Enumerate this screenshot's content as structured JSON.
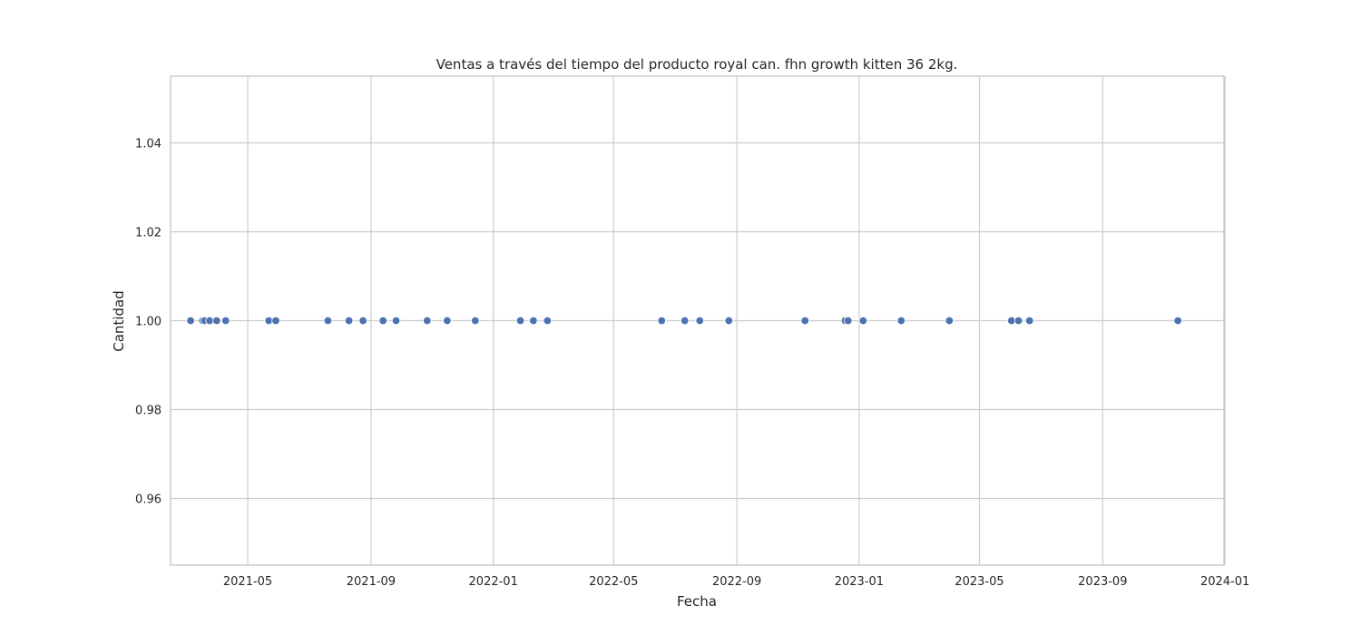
{
  "chart_data": {
    "type": "scatter",
    "title": "Ventas a través del tiempo del producto royal can. fhn growth kitten 36 2kg.",
    "xlabel": "Fecha",
    "ylabel": "Cantidad",
    "xlim": [
      "2021-02-13",
      "2023-12-31"
    ],
    "ylim": [
      0.945,
      1.055
    ],
    "grid": true,
    "point_color": "#4c72b0",
    "grid_color": "#cccccc",
    "x_ticks": [
      {
        "value": "2021-05-01",
        "label": "2021-05"
      },
      {
        "value": "2021-09-01",
        "label": "2021-09"
      },
      {
        "value": "2022-01-01",
        "label": "2022-01"
      },
      {
        "value": "2022-05-01",
        "label": "2022-05"
      },
      {
        "value": "2022-09-01",
        "label": "2022-09"
      },
      {
        "value": "2023-01-01",
        "label": "2023-01"
      },
      {
        "value": "2023-05-01",
        "label": "2023-05"
      },
      {
        "value": "2023-09-01",
        "label": "2023-09"
      },
      {
        "value": "2024-01-01",
        "label": "2024-01"
      }
    ],
    "y_ticks": [
      {
        "value": 0.96,
        "label": "0.96"
      },
      {
        "value": 0.98,
        "label": "0.98"
      },
      {
        "value": 1.0,
        "label": "1.00"
      },
      {
        "value": 1.02,
        "label": "1.02"
      },
      {
        "value": 1.04,
        "label": "1.04"
      }
    ],
    "points": [
      {
        "x": "2021-03-05",
        "y": 1
      },
      {
        "x": "2021-03-17",
        "y": 1
      },
      {
        "x": "2021-03-19",
        "y": 1
      },
      {
        "x": "2021-03-24",
        "y": 1
      },
      {
        "x": "2021-03-31",
        "y": 1
      },
      {
        "x": "2021-04-09",
        "y": 1
      },
      {
        "x": "2021-05-22",
        "y": 1
      },
      {
        "x": "2021-05-29",
        "y": 1
      },
      {
        "x": "2021-07-20",
        "y": 1
      },
      {
        "x": "2021-08-10",
        "y": 1
      },
      {
        "x": "2021-08-24",
        "y": 1
      },
      {
        "x": "2021-09-13",
        "y": 1
      },
      {
        "x": "2021-09-26",
        "y": 1
      },
      {
        "x": "2021-10-27",
        "y": 1
      },
      {
        "x": "2021-11-16",
        "y": 1
      },
      {
        "x": "2021-12-14",
        "y": 1
      },
      {
        "x": "2022-01-28",
        "y": 1
      },
      {
        "x": "2022-02-10",
        "y": 1
      },
      {
        "x": "2022-02-24",
        "y": 1
      },
      {
        "x": "2022-06-18",
        "y": 1
      },
      {
        "x": "2022-07-11",
        "y": 1
      },
      {
        "x": "2022-07-26",
        "y": 1
      },
      {
        "x": "2022-08-24",
        "y": 1
      },
      {
        "x": "2022-11-08",
        "y": 1
      },
      {
        "x": "2022-12-18",
        "y": 1
      },
      {
        "x": "2022-12-21",
        "y": 1
      },
      {
        "x": "2023-01-05",
        "y": 1
      },
      {
        "x": "2023-02-12",
        "y": 1
      },
      {
        "x": "2023-04-01",
        "y": 1
      },
      {
        "x": "2023-06-02",
        "y": 1
      },
      {
        "x": "2023-06-09",
        "y": 1
      },
      {
        "x": "2023-06-20",
        "y": 1
      },
      {
        "x": "2023-11-15",
        "y": 1
      }
    ]
  }
}
